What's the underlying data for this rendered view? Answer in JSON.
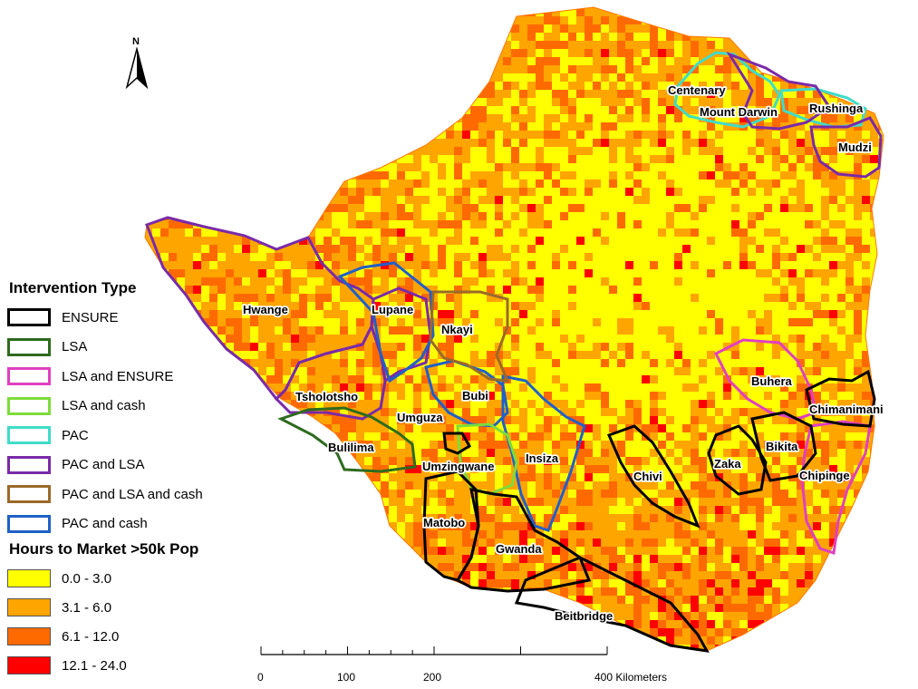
{
  "map": {
    "districts": [
      {
        "name": "Centenary",
        "intervention": "PAC"
      },
      {
        "name": "Mount Darwin",
        "intervention": "PAC and LSA"
      },
      {
        "name": "Rushinga",
        "intervention": "PAC"
      },
      {
        "name": "Mudzi",
        "intervention": "PAC and LSA"
      },
      {
        "name": "Hwange",
        "intervention": "PAC and LSA"
      },
      {
        "name": "Lupane",
        "intervention": "PAC and cash"
      },
      {
        "name": "Nkayi",
        "intervention": "PAC and LSA and cash"
      },
      {
        "name": "Tsholotsho",
        "intervention": "PAC and LSA"
      },
      {
        "name": "Bubi",
        "intervention": "PAC and cash"
      },
      {
        "name": "Umguza",
        "intervention": "PAC and LSA"
      },
      {
        "name": "Bulilima",
        "intervention": "LSA"
      },
      {
        "name": "Umzingwane",
        "intervention": "LSA and cash"
      },
      {
        "name": "Insiza",
        "intervention": "PAC and cash"
      },
      {
        "name": "Matobo",
        "intervention": "ENSURE"
      },
      {
        "name": "Gwanda",
        "intervention": "ENSURE"
      },
      {
        "name": "Beitbridge",
        "intervention": "ENSURE"
      },
      {
        "name": "Chivi",
        "intervention": "ENSURE"
      },
      {
        "name": "Zaka",
        "intervention": "ENSURE"
      },
      {
        "name": "Bikita",
        "intervention": "ENSURE"
      },
      {
        "name": "Buhera",
        "intervention": "LSA and ENSURE"
      },
      {
        "name": "Chimanimani",
        "intervention": "ENSURE"
      },
      {
        "name": "Chipinge",
        "intervention": "LSA and ENSURE"
      }
    ]
  },
  "legend": {
    "intervention_title": "Intervention Type",
    "intervention_items": [
      {
        "label": "ENSURE",
        "color": "#000000"
      },
      {
        "label": "LSA",
        "color": "#2e6b1e"
      },
      {
        "label": "LSA and ENSURE",
        "color": "#e040c0"
      },
      {
        "label": "LSA and cash",
        "color": "#7ddc3a"
      },
      {
        "label": "PAC",
        "color": "#3fdcc8"
      },
      {
        "label": "PAC and LSA",
        "color": "#7a2aa8"
      },
      {
        "label": "PAC and LSA and cash",
        "color": "#9a6a2a"
      },
      {
        "label": "PAC and cash",
        "color": "#2060c8"
      }
    ],
    "hours_title": "Hours to Market >50k Pop",
    "hours_items": [
      {
        "label": "0.0 - 3.0",
        "color": "#ffff00"
      },
      {
        "label": "3.1 - 6.0",
        "color": "#ffa500"
      },
      {
        "label": "6.1 - 12.0",
        "color": "#ff6a00"
      },
      {
        "label": "12.1 - 24.0",
        "color": "#ff0000"
      }
    ]
  },
  "north_arrow": {
    "label": "N"
  },
  "scale_bar": {
    "ticks": [
      "0",
      "100",
      "200",
      "400 Kilometers"
    ]
  }
}
